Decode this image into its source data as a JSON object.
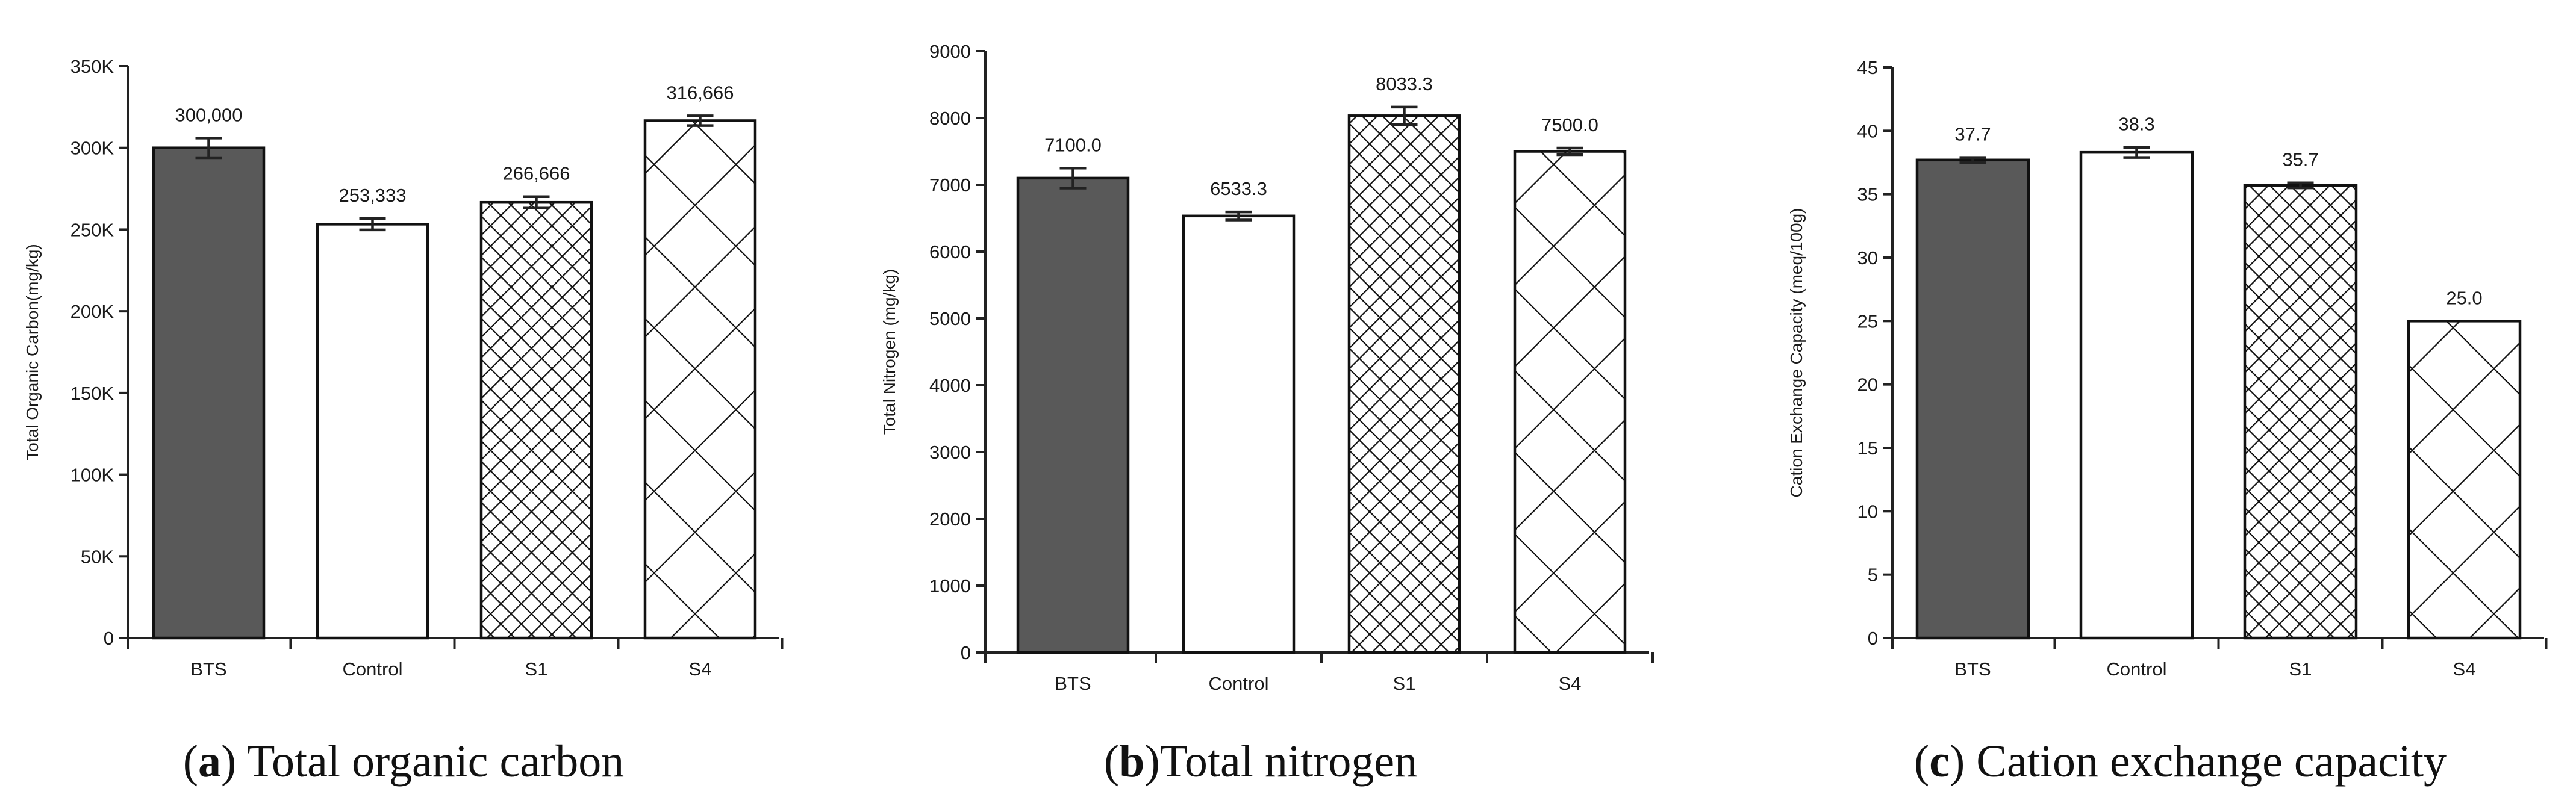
{
  "colors": {
    "dark_bar": "#595959",
    "bar_stroke": "#111111",
    "hatch": "#111111",
    "axis": "#222222",
    "background": "#ffffff"
  },
  "chart_data": [
    {
      "type": "bar",
      "caption_letter": "a",
      "caption_text": " Total organic carbon",
      "ylabel": "Total Organic Carbon(mg/kg)",
      "categories": [
        "BTS",
        "Control",
        "S1",
        "S4"
      ],
      "values": [
        300000,
        253333,
        266666,
        316666
      ],
      "errors": [
        6000,
        3500,
        3500,
        3000
      ],
      "value_labels": [
        "300,000",
        "253,333",
        "266,666",
        "316,666"
      ],
      "fills": [
        "solid",
        "none",
        "fine-crosshatch",
        "coarse-crosshatch"
      ],
      "ylim": [
        0,
        350000
      ],
      "yticks": [
        0,
        50000,
        100000,
        150000,
        200000,
        250000,
        300000,
        350000
      ],
      "ytick_labels": [
        "0",
        "50K",
        "100K",
        "150K",
        "200K",
        "250K",
        "300K",
        "350K"
      ],
      "grid": false,
      "legend": "none"
    },
    {
      "type": "bar",
      "caption_letter": "b",
      "caption_text": "Total nitrogen",
      "ylabel": "Total Nitrogen (mg/kg)",
      "categories": [
        "BTS",
        "Control",
        "S1",
        "S4"
      ],
      "values": [
        7100.0,
        6533.3,
        8033.3,
        7500.0
      ],
      "errors": [
        150,
        60,
        130,
        50
      ],
      "value_labels": [
        "7100.0",
        "6533.3",
        "8033.3",
        "7500.0"
      ],
      "fills": [
        "solid",
        "none",
        "fine-crosshatch",
        "coarse-crosshatch"
      ],
      "ylim": [
        0,
        9000
      ],
      "yticks": [
        0,
        1000,
        2000,
        3000,
        4000,
        5000,
        6000,
        7000,
        8000,
        9000
      ],
      "ytick_labels": [
        "0",
        "1000",
        "2000",
        "3000",
        "4000",
        "5000",
        "6000",
        "7000",
        "8000",
        "9000"
      ],
      "grid": false,
      "legend": "none"
    },
    {
      "type": "bar",
      "caption_letter": "c",
      "caption_text": " Cation exchange capacity",
      "ylabel": "Cation Exchange Capacity (meq/100g)",
      "categories": [
        "BTS",
        "Control",
        "S1",
        "S4"
      ],
      "values": [
        37.7,
        38.3,
        35.7,
        25.0
      ],
      "errors": [
        0.2,
        0.4,
        0.2,
        0
      ],
      "value_labels": [
        "37.7",
        "38.3",
        "35.7",
        "25.0"
      ],
      "fills": [
        "solid",
        "none",
        "fine-crosshatch",
        "coarse-crosshatch"
      ],
      "ylim": [
        0,
        45
      ],
      "yticks": [
        0,
        5,
        10,
        15,
        20,
        25,
        30,
        35,
        40,
        45
      ],
      "ytick_labels": [
        "0",
        "5",
        "10",
        "15",
        "20",
        "25",
        "30",
        "35",
        "40",
        "45"
      ],
      "grid": false,
      "legend": "none"
    }
  ]
}
